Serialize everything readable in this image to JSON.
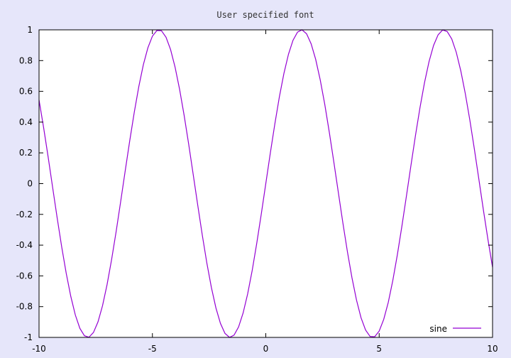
{
  "chart_data": {
    "type": "line",
    "title": "User specified font",
    "xlabel": "",
    "ylabel": "",
    "xlim": [
      -10,
      10
    ],
    "ylim": [
      -1,
      1
    ],
    "x_ticks": [
      -10,
      -5,
      0,
      5,
      10
    ],
    "x_tick_labels": [
      "-10",
      "-5",
      "0",
      "5",
      "10"
    ],
    "y_ticks": [
      1,
      0.8,
      0.6,
      0.4,
      0.2,
      0,
      -0.2,
      -0.4,
      -0.6,
      -0.8,
      -1
    ],
    "y_tick_labels": [
      "1",
      "0.8",
      "0.6",
      "0.4",
      "0.2",
      "0",
      "-0.2",
      "-0.4",
      "-0.6",
      "-0.8",
      "-1"
    ],
    "grid": false,
    "legend_position": "bottom-right",
    "series": [
      {
        "name": "sine",
        "color": "#9400d3",
        "x": [
          -10.0,
          -9.8,
          -9.6,
          -9.4,
          -9.2,
          -9.0,
          -8.8,
          -8.6,
          -8.4,
          -8.2,
          -8.0,
          -7.8,
          -7.6,
          -7.4,
          -7.2,
          -7.0,
          -6.8,
          -6.6,
          -6.4,
          -6.2,
          -6.0,
          -5.8,
          -5.6,
          -5.4,
          -5.2,
          -5.0,
          -4.8,
          -4.6,
          -4.4,
          -4.2,
          -4.0,
          -3.8,
          -3.6,
          -3.4,
          -3.2,
          -3.0,
          -2.8,
          -2.6,
          -2.4,
          -2.2,
          -2.0,
          -1.8,
          -1.6,
          -1.4,
          -1.2,
          -1.0,
          -0.8,
          -0.6,
          -0.4,
          -0.2,
          0.0,
          0.2,
          0.4,
          0.6,
          0.8,
          1.0,
          1.2,
          1.4,
          1.6,
          1.8,
          2.0,
          2.2,
          2.4,
          2.6,
          2.8,
          3.0,
          3.2,
          3.4,
          3.6,
          3.8,
          4.0,
          4.2,
          4.4,
          4.6,
          4.8,
          5.0,
          5.2,
          5.4,
          5.6,
          5.8,
          6.0,
          6.2,
          6.4,
          6.6,
          6.8,
          7.0,
          7.2,
          7.4,
          7.6,
          7.8,
          8.0,
          8.2,
          8.4,
          8.6,
          8.8,
          9.0,
          9.2,
          9.4,
          9.6,
          9.8,
          10.0
        ],
        "y": [
          0.544,
          0.366,
          0.175,
          -0.025,
          -0.223,
          -0.412,
          -0.584,
          -0.733,
          -0.854,
          -0.941,
          -0.989,
          -0.999,
          -0.968,
          -0.899,
          -0.794,
          -0.657,
          -0.494,
          -0.312,
          -0.117,
          0.083,
          0.279,
          0.464,
          0.631,
          0.773,
          0.883,
          0.959,
          0.996,
          0.994,
          0.952,
          0.872,
          0.757,
          0.612,
          0.443,
          0.256,
          0.058,
          -0.141,
          -0.335,
          -0.516,
          -0.675,
          -0.808,
          -0.909,
          -0.974,
          -1.0,
          -0.985,
          -0.932,
          -0.841,
          -0.717,
          -0.565,
          -0.389,
          -0.199,
          0.0,
          0.199,
          0.389,
          0.565,
          0.717,
          0.841,
          0.932,
          0.985,
          1.0,
          0.974,
          0.909,
          0.808,
          0.675,
          0.516,
          0.335,
          0.141,
          -0.058,
          -0.256,
          -0.443,
          -0.612,
          -0.757,
          -0.872,
          -0.952,
          -0.994,
          -0.996,
          -0.959,
          -0.883,
          -0.773,
          -0.631,
          -0.464,
          -0.279,
          -0.083,
          0.117,
          0.312,
          0.494,
          0.657,
          0.794,
          0.899,
          0.968,
          0.999,
          0.989,
          0.941,
          0.854,
          0.733,
          0.584,
          0.412,
          0.223,
          0.025,
          -0.175,
          -0.366,
          -0.544
        ]
      }
    ]
  }
}
